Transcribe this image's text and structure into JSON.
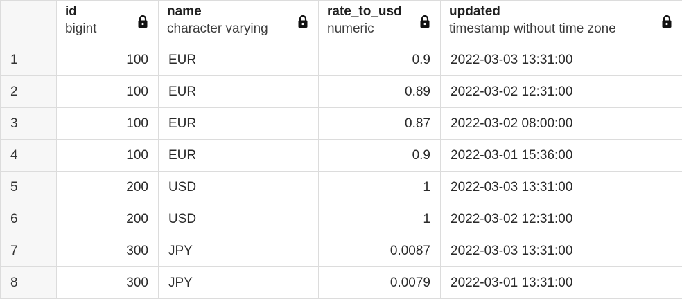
{
  "columns": [
    {
      "name": "id",
      "type": "bigint",
      "icon": "lock-icon"
    },
    {
      "name": "name",
      "type": "character varying",
      "icon": "lock-icon"
    },
    {
      "name": "rate_to_usd",
      "type": "numeric",
      "icon": "lock-icon"
    },
    {
      "name": "updated",
      "type": "timestamp without time zone",
      "icon": "lock-icon"
    }
  ],
  "rows": [
    {
      "num": "1",
      "id": "100",
      "name": "EUR",
      "rate_to_usd": "0.9",
      "updated": "2022-03-03 13:31:00"
    },
    {
      "num": "2",
      "id": "100",
      "name": "EUR",
      "rate_to_usd": "0.89",
      "updated": "2022-03-02 12:31:00"
    },
    {
      "num": "3",
      "id": "100",
      "name": "EUR",
      "rate_to_usd": "0.87",
      "updated": "2022-03-02 08:00:00"
    },
    {
      "num": "4",
      "id": "100",
      "name": "EUR",
      "rate_to_usd": "0.9",
      "updated": "2022-03-01 15:36:00"
    },
    {
      "num": "5",
      "id": "200",
      "name": "USD",
      "rate_to_usd": "1",
      "updated": "2022-03-03 13:31:00"
    },
    {
      "num": "6",
      "id": "200",
      "name": "USD",
      "rate_to_usd": "1",
      "updated": "2022-03-02 12:31:00"
    },
    {
      "num": "7",
      "id": "300",
      "name": "JPY",
      "rate_to_usd": "0.0087",
      "updated": "2022-03-03 13:31:00"
    },
    {
      "num": "8",
      "id": "300",
      "name": "JPY",
      "rate_to_usd": "0.0079",
      "updated": "2022-03-01 13:31:00"
    }
  ],
  "colors": {
    "grid_line": "#dcdcdc",
    "row_header_bg": "#f7f7f7",
    "text": "#222222"
  }
}
